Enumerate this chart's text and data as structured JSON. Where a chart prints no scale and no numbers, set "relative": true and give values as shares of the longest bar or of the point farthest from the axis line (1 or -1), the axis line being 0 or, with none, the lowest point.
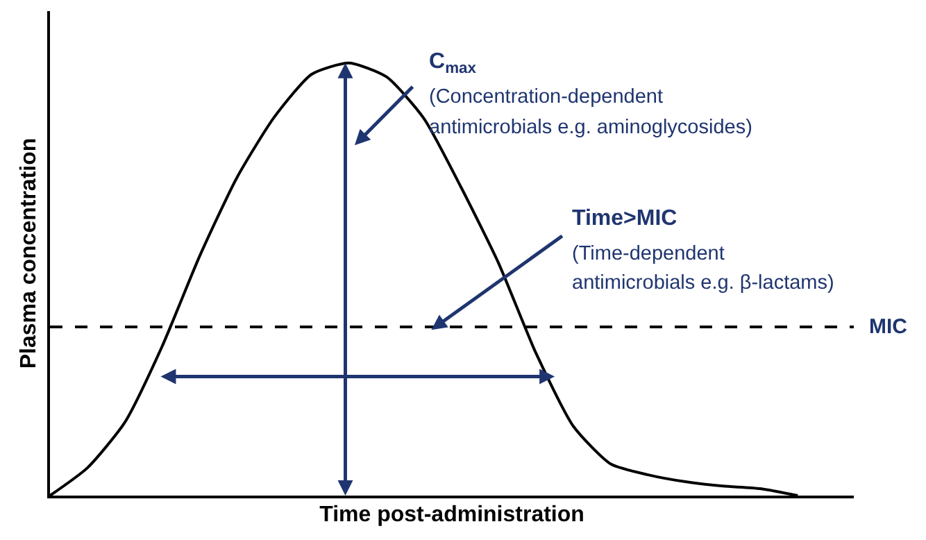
{
  "chart_data": {
    "type": "line",
    "relative": true,
    "xlabel": "Time post-administration",
    "ylabel": "Plasma concentration",
    "categories": [
      null,
      null,
      null,
      null,
      null,
      null,
      null,
      null,
      null,
      null,
      null,
      null,
      null,
      null,
      null,
      null,
      null,
      null,
      null,
      null,
      null
    ],
    "series": [
      {
        "color": "#000000",
        "values": [
          0,
          0.064,
          0.169,
          0.345,
          0.553,
          0.735,
          0.875,
          0.974,
          1,
          0.968,
          0.872,
          0.712,
          0.537,
          0.329,
          0.16,
          0.073,
          0.048,
          0.032,
          0.022,
          0.016,
          0
        ]
      }
    ],
    "ref_lines": [
      {
        "axis": "y",
        "value": 0.39,
        "label": "MIC",
        "color": "#000000",
        "line_style": "dashed"
      }
    ],
    "annotations": [
      "C$_{max}$",
      "(Concentration-dependent",
      "antimicrobials e.g. aminoglycosides)",
      "Time>MIC",
      "(Time-dependent",
      "antimicrobials e.g. β-lactams)"
    ],
    "marker": "none",
    "line_style": "solid"
  }
}
